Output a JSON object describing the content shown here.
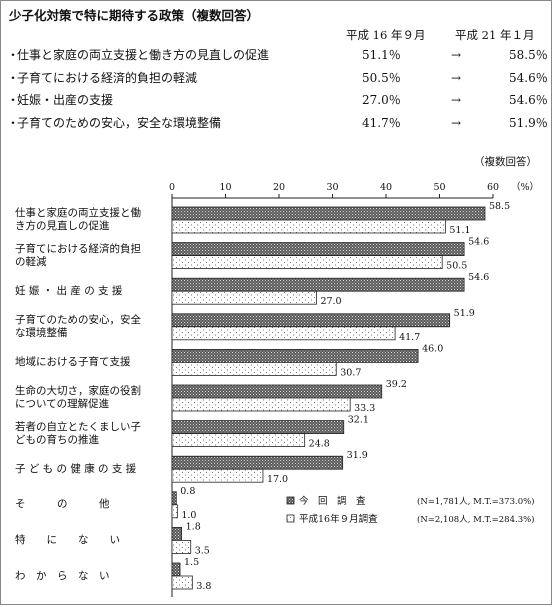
{
  "summary": {
    "title": "少子化対策で特に期待する政策（複数回答）",
    "col1": "平成 16 年９月",
    "col2": "平成 21 年１月",
    "bullet": "・",
    "arrow": "→",
    "rows": [
      {
        "label": "仕事と家庭の両立支援と働き方の見直しの促進",
        "v1": "51.1％",
        "v2": "58.5％"
      },
      {
        "label": "子育てにおける経済的負担の軽減",
        "v1": "50.5％",
        "v2": "54.6％"
      },
      {
        "label": "妊娠・出産の支援",
        "v1": "27.0％",
        "v2": "54.6％"
      },
      {
        "label": "子育てのための安心，安全な環境整備",
        "v1": "41.7％",
        "v2": "51.9％"
      }
    ]
  },
  "chart_data": {
    "type": "bar",
    "orientation": "horizontal",
    "note": "（複数回答）",
    "unit": "（%）",
    "xlim": [
      0,
      60
    ],
    "xticks": [
      0,
      10,
      20,
      30,
      40,
      50,
      60
    ],
    "categories": [
      [
        "仕事と家庭の両立支援と働",
        "き方の見直しの促進"
      ],
      [
        "子育てにおける経済的負担",
        "の軽減"
      ],
      [
        "妊 娠 ・ 出 産 の 支 援"
      ],
      [
        "子育てのための安心，安全",
        "な環境整備"
      ],
      [
        "地域における子育て支援"
      ],
      [
        "生命の大切さ，家庭の役割",
        "についての理解促進"
      ],
      [
        "若者の自立とたくましい子",
        "どもの育ちの推進"
      ],
      [
        "子 ど も の 健 康 の 支 援"
      ],
      [
        "そ　　　の　　　他"
      ],
      [
        "特　　に　　な　　い"
      ],
      [
        "わ　か　ら　な　い"
      ]
    ],
    "series": [
      {
        "name": "今　回　調　査",
        "note": "(N=1,781人, M.T.=373.0%)",
        "color": "#555555",
        "values": [
          58.5,
          54.6,
          54.6,
          51.9,
          46.0,
          39.2,
          32.1,
          31.9,
          0.8,
          1.8,
          1.5
        ],
        "labels": [
          "58.5",
          "54.6",
          "54.6",
          "51.9",
          "46.0",
          "39.2",
          "32.1",
          "31.9",
          "0.8",
          "1.8",
          "1.5"
        ]
      },
      {
        "name": "平成16年９月調査",
        "note": "(N=2,108人, M.T.=284.3%)",
        "color": "#ffffff",
        "values": [
          51.1,
          50.5,
          27.0,
          41.7,
          30.7,
          33.3,
          24.8,
          17.0,
          1.0,
          3.5,
          3.8
        ],
        "labels": [
          "51.1",
          "50.5",
          "27.0",
          "41.7",
          "30.7",
          "33.3",
          "24.8",
          "17.0",
          "1.0",
          "3.5",
          "3.8"
        ]
      }
    ]
  }
}
